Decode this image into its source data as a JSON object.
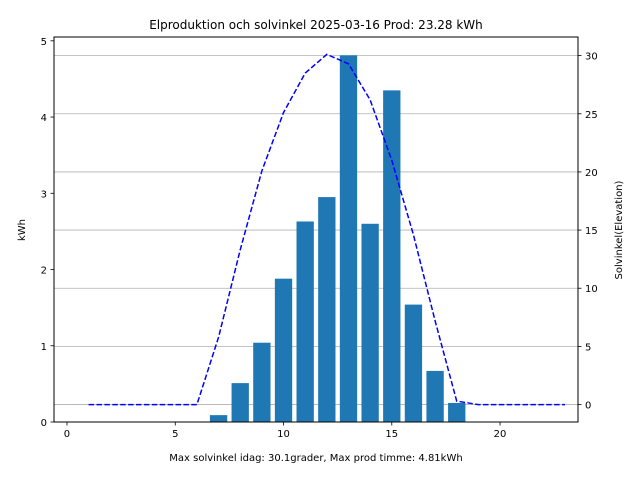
{
  "chart_data": {
    "type": "bar",
    "title": "Elproduktion och solvinkel 2025-03-16 Prod: 23.28 kWh",
    "xlabel": "Max solvinkel idag: 30.1grader, Max prod timme: 4.81kWh",
    "ylabel": "kWh",
    "y2label": "Solvinkel(Elevation)",
    "xlim": [
      -0.6,
      23.6
    ],
    "ylim": [
      0,
      5.05
    ],
    "y2lim": [
      -1.5,
      31.6
    ],
    "xticks": [
      "0",
      "5",
      "10",
      "15",
      "20"
    ],
    "yticks": [
      "0",
      "1",
      "2",
      "3",
      "4",
      "5"
    ],
    "y2ticks": [
      "0",
      "5",
      "10",
      "15",
      "20",
      "25",
      "30"
    ],
    "grid": "horizontal (right axis)",
    "colors": {
      "bars": "#1f77b4",
      "elevation": "#0000ff",
      "y2label": "#0000ff"
    },
    "bars": {
      "name": "kWh",
      "x": [
        7,
        8,
        9,
        10,
        11,
        12,
        13,
        14,
        15,
        16,
        17,
        18
      ],
      "values": [
        0.09,
        0.51,
        1.04,
        1.88,
        2.63,
        2.95,
        4.81,
        2.6,
        4.35,
        1.54,
        0.67,
        0.25
      ]
    },
    "elevation": {
      "name": "Solvinkel",
      "style": "dashed",
      "x": [
        1,
        2,
        3,
        4,
        5,
        6,
        7,
        8,
        9,
        10,
        11,
        12,
        13,
        14,
        15,
        16,
        17,
        18,
        19,
        20,
        21,
        22,
        23
      ],
      "values": [
        0,
        0,
        0,
        0,
        0,
        0,
        5.8,
        13.3,
        20.1,
        25.1,
        28.5,
        30.1,
        29.3,
        26.2,
        21.0,
        14.6,
        7.2,
        0.3,
        0,
        0,
        0,
        0,
        0
      ]
    }
  }
}
